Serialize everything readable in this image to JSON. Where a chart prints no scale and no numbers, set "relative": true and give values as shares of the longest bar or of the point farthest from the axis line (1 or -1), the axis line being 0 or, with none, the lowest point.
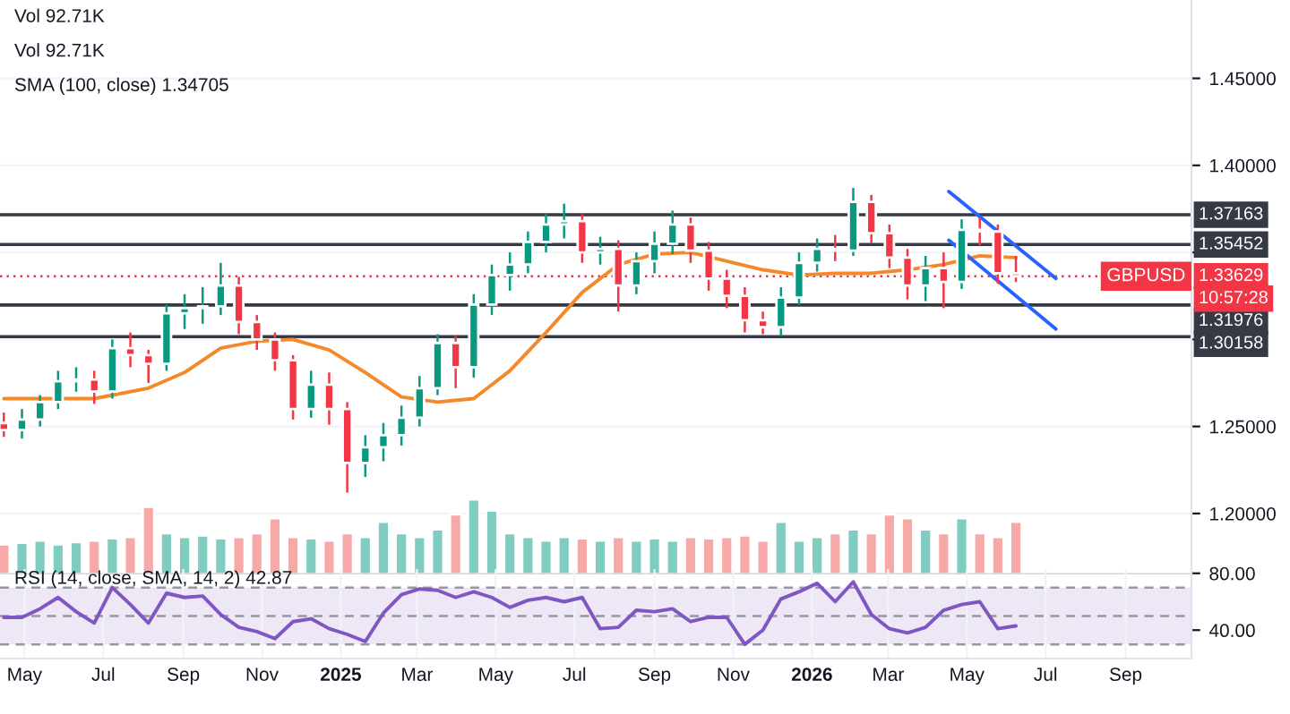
{
  "chart_data": [
    {
      "type": "candlestick",
      "x": [
        "2024-04-15",
        "2024-04-29",
        "2024-05-13",
        "2024-05-27",
        "2024-06-10",
        "2024-06-24",
        "2024-07-08",
        "2024-07-22",
        "2024-08-05",
        "2024-08-19",
        "2024-09-02",
        "2024-09-16",
        "2024-09-30",
        "2024-10-14",
        "2024-10-28",
        "2024-11-11",
        "2024-11-25",
        "2024-12-09",
        "2024-12-23",
        "2025-01-06",
        "2025-01-20",
        "2025-02-03",
        "2025-02-17",
        "2025-03-03",
        "2025-03-17",
        "2025-03-31",
        "2025-04-14",
        "2025-04-28",
        "2025-05-12",
        "2025-05-26",
        "2025-06-09",
        "2025-06-23",
        "2025-07-07",
        "2025-07-21",
        "2025-08-04",
        "2025-08-18",
        "2025-09-01",
        "2025-09-15",
        "2025-09-29",
        "2025-10-13",
        "2025-10-27",
        "2025-11-10",
        "2025-11-24",
        "2025-12-08",
        "2025-12-22",
        "2026-01-05",
        "2026-01-19",
        "2026-02-02",
        "2026-02-16",
        "2026-03-02",
        "2026-03-16",
        "2026-03-30",
        "2026-04-13",
        "2026-04-27",
        "2026-05-11",
        "2026-05-25",
        "2026-06-08"
      ],
      "ohlc": [
        [
          1.252,
          1.258,
          1.244,
          1.248
        ],
        [
          1.248,
          1.26,
          1.243,
          1.254
        ],
        [
          1.254,
          1.268,
          1.25,
          1.264
        ],
        [
          1.264,
          1.282,
          1.26,
          1.276
        ],
        [
          1.276,
          1.284,
          1.27,
          1.277
        ],
        [
          1.277,
          1.282,
          1.263,
          1.27
        ],
        [
          1.27,
          1.3,
          1.266,
          1.295
        ],
        [
          1.295,
          1.304,
          1.284,
          1.291
        ],
        [
          1.291,
          1.294,
          1.275,
          1.286
        ],
        [
          1.286,
          1.32,
          1.282,
          1.315
        ],
        [
          1.315,
          1.326,
          1.306,
          1.318
        ],
        [
          1.318,
          1.33,
          1.309,
          1.319
        ],
        [
          1.319,
          1.344,
          1.314,
          1.331
        ],
        [
          1.331,
          1.336,
          1.303,
          1.31
        ],
        [
          1.31,
          1.314,
          1.294,
          1.3
        ],
        [
          1.3,
          1.304,
          1.282,
          1.288
        ],
        [
          1.288,
          1.291,
          1.254,
          1.26
        ],
        [
          1.26,
          1.282,
          1.255,
          1.274
        ],
        [
          1.274,
          1.281,
          1.251,
          1.26
        ],
        [
          1.26,
          1.264,
          1.212,
          1.229
        ],
        [
          1.229,
          1.245,
          1.221,
          1.238
        ],
        [
          1.238,
          1.252,
          1.23,
          1.245
        ],
        [
          1.245,
          1.262,
          1.239,
          1.255
        ],
        [
          1.255,
          1.279,
          1.25,
          1.272
        ],
        [
          1.272,
          1.303,
          1.268,
          1.298
        ],
        [
          1.298,
          1.302,
          1.272,
          1.284
        ],
        [
          1.284,
          1.326,
          1.278,
          1.32
        ],
        [
          1.32,
          1.343,
          1.314,
          1.337
        ],
        [
          1.337,
          1.35,
          1.328,
          1.343
        ],
        [
          1.343,
          1.362,
          1.338,
          1.356
        ],
        [
          1.356,
          1.372,
          1.35,
          1.366
        ],
        [
          1.366,
          1.378,
          1.358,
          1.368
        ],
        [
          1.368,
          1.372,
          1.344,
          1.35
        ],
        [
          1.35,
          1.359,
          1.343,
          1.352
        ],
        [
          1.352,
          1.357,
          1.316,
          1.331
        ],
        [
          1.331,
          1.35,
          1.326,
          1.345
        ],
        [
          1.345,
          1.362,
          1.338,
          1.355
        ],
        [
          1.355,
          1.374,
          1.349,
          1.366
        ],
        [
          1.366,
          1.37,
          1.344,
          1.351
        ],
        [
          1.351,
          1.356,
          1.328,
          1.335
        ],
        [
          1.335,
          1.34,
          1.318,
          1.325
        ],
        [
          1.325,
          1.33,
          1.304,
          1.311
        ],
        [
          1.311,
          1.316,
          1.303,
          1.307
        ],
        [
          1.307,
          1.33,
          1.302,
          1.324
        ],
        [
          1.324,
          1.35,
          1.32,
          1.344
        ],
        [
          1.344,
          1.358,
          1.339,
          1.352
        ],
        [
          1.352,
          1.36,
          1.345,
          1.351
        ],
        [
          1.351,
          1.387,
          1.348,
          1.379
        ],
        [
          1.379,
          1.383,
          1.355,
          1.361
        ],
        [
          1.361,
          1.366,
          1.341,
          1.347
        ],
        [
          1.347,
          1.352,
          1.323,
          1.331
        ],
        [
          1.331,
          1.348,
          1.322,
          1.341
        ],
        [
          1.341,
          1.35,
          1.318,
          1.333
        ],
        [
          1.333,
          1.369,
          1.329,
          1.363
        ],
        [
          1.363,
          1.37,
          1.354,
          1.362
        ],
        [
          1.362,
          1.366,
          1.332,
          1.338
        ],
        [
          1.338,
          1.348,
          1.333,
          1.33629
        ]
      ],
      "colors": [
        "#f23645",
        "#089981",
        "#089981",
        "#089981",
        "#089981",
        "#f23645",
        "#089981",
        "#f23645",
        "#f23645",
        "#089981",
        "#089981",
        "#089981",
        "#089981",
        "#f23645",
        "#f23645",
        "#f23645",
        "#f23645",
        "#089981",
        "#f23645",
        "#f23645",
        "#089981",
        "#089981",
        "#089981",
        "#089981",
        "#089981",
        "#f23645",
        "#089981",
        "#089981",
        "#089981",
        "#089981",
        "#089981",
        "#089981",
        "#f23645",
        "#089981",
        "#f23645",
        "#089981",
        "#089981",
        "#089981",
        "#f23645",
        "#f23645",
        "#f23645",
        "#f23645",
        "#f23645",
        "#089981",
        "#089981",
        "#089981",
        "#f23645",
        "#089981",
        "#f23645",
        "#f23645",
        "#f23645",
        "#089981",
        "#f23645",
        "#089981",
        "#f23645",
        "#f23645",
        "#f23645"
      ],
      "series": [
        {
          "type": "line",
          "color": "#f5892a",
          "x": [
            "2024-04-15",
            "2024-06-24",
            "2024-08-05",
            "2024-09-02",
            "2024-09-30",
            "2024-10-28",
            "2024-11-25",
            "2024-12-23",
            "2025-01-20",
            "2025-02-17",
            "2025-03-17",
            "2025-04-14",
            "2025-05-12",
            "2025-06-09",
            "2025-07-07",
            "2025-08-04",
            "2025-09-01",
            "2025-09-29",
            "2025-10-27",
            "2025-11-24",
            "2025-12-22",
            "2026-01-19",
            "2026-02-16",
            "2026-03-16",
            "2026-04-13",
            "2026-05-11",
            "2026-06-08"
          ],
          "values": [
            1.266,
            1.266,
            1.272,
            1.281,
            1.295,
            1.299,
            1.3,
            1.294,
            1.281,
            1.267,
            1.264,
            1.266,
            1.282,
            1.304,
            1.327,
            1.343,
            1.349,
            1.35,
            1.345,
            1.34,
            1.337,
            1.338,
            1.338,
            1.34,
            1.343,
            1.348,
            1.347
          ]
        },
        {
          "type": "line",
          "color": "#2962ff",
          "x": [
            "2026-04-17",
            "2026-07-09"
          ],
          "values": [
            1.385,
            1.335
          ]
        },
        {
          "type": "line",
          "color": "#2962ff",
          "x": [
            "2026-04-17",
            "2026-07-09"
          ],
          "values": [
            1.357,
            1.306
          ]
        }
      ],
      "ref_lines": [
        {
          "axis": "y",
          "value": 1.37163,
          "label": "1.37163",
          "color": "#363a45"
        },
        {
          "axis": "y",
          "value": 1.35452,
          "label": "1.35452",
          "color": "#363a45"
        },
        {
          "axis": "y",
          "value": 1.31976,
          "label": "1.31976",
          "color": "#363a45"
        },
        {
          "axis": "y",
          "value": 1.30158,
          "label": "1.30158",
          "color": "#363a45"
        },
        {
          "axis": "y",
          "value": 1.33629,
          "label": "1.33629",
          "color": "#f23645",
          "line_style": "dotted"
        }
      ],
      "annotations": [
        "Vol 92.71K",
        "Vol 92.71K",
        "SMA (100, close) 1.34705",
        {
          "text": "GBPUSD",
          "y": 1.33629
        },
        "10:57:28"
      ],
      "xlim": [
        "2024-04-12",
        "2026-10-22"
      ],
      "ylim": [
        1.165,
        1.495
      ],
      "yticks": [
        {
          "value": 1.2,
          "label": "1.20000"
        },
        {
          "value": 1.25,
          "label": "1.25000"
        },
        {
          "value": 1.3,
          "label": null
        },
        {
          "value": 1.35,
          "label": null
        },
        {
          "value": 1.4,
          "label": "1.40000"
        },
        {
          "value": 1.45,
          "label": "1.45000"
        }
      ],
      "grid": "y",
      "tick_labels": "y"
    },
    {
      "type": "bar",
      "relative": true,
      "tick_labels": false,
      "x": [
        "2024-04-15",
        "2024-04-29",
        "2024-05-13",
        "2024-05-27",
        "2024-06-10",
        "2024-06-24",
        "2024-07-08",
        "2024-07-22",
        "2024-08-05",
        "2024-08-19",
        "2024-09-02",
        "2024-09-16",
        "2024-09-30",
        "2024-10-14",
        "2024-10-28",
        "2024-11-11",
        "2024-11-25",
        "2024-12-09",
        "2024-12-23",
        "2025-01-06",
        "2025-01-20",
        "2025-02-03",
        "2025-02-17",
        "2025-03-03",
        "2025-03-17",
        "2025-03-31",
        "2025-04-14",
        "2025-04-28",
        "2025-05-12",
        "2025-05-26",
        "2025-06-09",
        "2025-06-23",
        "2025-07-07",
        "2025-07-21",
        "2025-08-04",
        "2025-08-18",
        "2025-09-01",
        "2025-09-15",
        "2025-09-29",
        "2025-10-13",
        "2025-10-27",
        "2025-11-10",
        "2025-11-24",
        "2025-12-08",
        "2025-12-22",
        "2026-01-05",
        "2026-01-19",
        "2026-02-02",
        "2026-02-16",
        "2026-03-02",
        "2026-03-16",
        "2026-03-30",
        "2026-04-13",
        "2026-04-27",
        "2026-05-11",
        "2026-05-25",
        "2026-06-08"
      ],
      "values": [
        0.4,
        0.42,
        0.45,
        0.4,
        0.43,
        0.45,
        0.48,
        0.5,
        0.9,
        0.55,
        0.5,
        0.52,
        0.48,
        0.5,
        0.55,
        0.75,
        0.5,
        0.48,
        0.45,
        0.55,
        0.5,
        0.7,
        0.55,
        0.5,
        0.6,
        0.8,
        1.0,
        0.85,
        0.55,
        0.5,
        0.45,
        0.5,
        0.48,
        0.45,
        0.5,
        0.45,
        0.48,
        0.45,
        0.5,
        0.48,
        0.5,
        0.52,
        0.45,
        0.7,
        0.45,
        0.5,
        0.55,
        0.6,
        0.55,
        0.8,
        0.75,
        0.6,
        0.55,
        0.75,
        0.55,
        0.5,
        0.7
      ],
      "colors": [
        "#f7a9a7",
        "#7fccc0",
        "#7fccc0",
        "#7fccc0",
        "#7fccc0",
        "#f7a9a7",
        "#7fccc0",
        "#f7a9a7",
        "#f7a9a7",
        "#7fccc0",
        "#7fccc0",
        "#7fccc0",
        "#7fccc0",
        "#f7a9a7",
        "#f7a9a7",
        "#f7a9a7",
        "#f7a9a7",
        "#7fccc0",
        "#f7a9a7",
        "#f7a9a7",
        "#7fccc0",
        "#7fccc0",
        "#7fccc0",
        "#7fccc0",
        "#7fccc0",
        "#f7a9a7",
        "#7fccc0",
        "#7fccc0",
        "#7fccc0",
        "#7fccc0",
        "#7fccc0",
        "#7fccc0",
        "#f7a9a7",
        "#7fccc0",
        "#f7a9a7",
        "#7fccc0",
        "#7fccc0",
        "#7fccc0",
        "#f7a9a7",
        "#f7a9a7",
        "#f7a9a7",
        "#f7a9a7",
        "#f7a9a7",
        "#7fccc0",
        "#7fccc0",
        "#7fccc0",
        "#f7a9a7",
        "#7fccc0",
        "#f7a9a7",
        "#f7a9a7",
        "#f7a9a7",
        "#7fccc0",
        "#f7a9a7",
        "#7fccc0",
        "#f7a9a7",
        "#f7a9a7",
        "#f7a9a7"
      ],
      "xlim": [
        "2024-04-12",
        "2026-10-22"
      ]
    },
    {
      "type": "line",
      "x": [
        "2024-04-15",
        "2024-04-29",
        "2024-05-13",
        "2024-05-27",
        "2024-06-10",
        "2024-06-24",
        "2024-07-08",
        "2024-07-22",
        "2024-08-05",
        "2024-08-19",
        "2024-09-02",
        "2024-09-16",
        "2024-09-30",
        "2024-10-14",
        "2024-10-28",
        "2024-11-11",
        "2024-11-25",
        "2024-12-09",
        "2024-12-23",
        "2025-01-06",
        "2025-01-20",
        "2025-02-03",
        "2025-02-17",
        "2025-03-03",
        "2025-03-17",
        "2025-03-31",
        "2025-04-14",
        "2025-04-28",
        "2025-05-12",
        "2025-05-26",
        "2025-06-09",
        "2025-06-23",
        "2025-07-07",
        "2025-07-21",
        "2025-08-04",
        "2025-08-18",
        "2025-09-01",
        "2025-09-15",
        "2025-09-29",
        "2025-10-13",
        "2025-10-27",
        "2025-11-10",
        "2025-11-24",
        "2025-12-08",
        "2025-12-22",
        "2026-01-05",
        "2026-01-19",
        "2026-02-02",
        "2026-02-16",
        "2026-03-02",
        "2026-03-16",
        "2026-03-30",
        "2026-04-13",
        "2026-04-27",
        "2026-05-11",
        "2026-05-25",
        "2026-06-08"
      ],
      "series": [
        {
          "color": "#7e57c2",
          "values": [
            49,
            49,
            55,
            63,
            53,
            45,
            70,
            58,
            45,
            66,
            63,
            64,
            51,
            42,
            39,
            34,
            46,
            48,
            41,
            37,
            32,
            52,
            65,
            69,
            68,
            63,
            67,
            63,
            56,
            61,
            63,
            60,
            63,
            41,
            42,
            54,
            53,
            55,
            46,
            49,
            49,
            30,
            40,
            62,
            67,
            73,
            60,
            74,
            51,
            41,
            38,
            42,
            54,
            58,
            60,
            41,
            43
          ]
        }
      ],
      "bands": [
        {
          "axis": "y",
          "from": 30,
          "to": 70,
          "color": "#ede7f6"
        }
      ],
      "ref_lines": [
        {
          "axis": "y",
          "value": 70,
          "color": "#9598a1",
          "line_style": "dashed"
        },
        {
          "axis": "y",
          "value": 50,
          "color": "#9598a1",
          "line_style": "dashed"
        },
        {
          "axis": "y",
          "value": 30,
          "color": "#9598a1",
          "line_style": "dashed"
        }
      ],
      "annotations": [
        "RSI (14, close, SMA, 14, 2) 42.87"
      ],
      "xlim": [
        "2024-04-12",
        "2026-10-22"
      ],
      "xticks": [
        {
          "value": "2024-05-01",
          "label": "May"
        },
        {
          "value": "2024-07-01",
          "label": "Jul"
        },
        {
          "value": "2024-09-01",
          "label": "Sep"
        },
        {
          "value": "2024-11-01",
          "label": "Nov"
        },
        {
          "value": "2025-01-01",
          "label": "2025"
        },
        {
          "value": "2025-03-01",
          "label": "Mar"
        },
        {
          "value": "2025-05-01",
          "label": "May"
        },
        {
          "value": "2025-07-01",
          "label": "Jul"
        },
        {
          "value": "2025-09-01",
          "label": "Sep"
        },
        {
          "value": "2025-11-01",
          "label": "Nov"
        },
        {
          "value": "2026-01-01",
          "label": "2026"
        },
        {
          "value": "2026-03-01",
          "label": "Mar"
        },
        {
          "value": "2026-05-01",
          "label": "May"
        },
        {
          "value": "2026-07-01",
          "label": "Jul"
        },
        {
          "value": "2026-09-01",
          "label": "Sep"
        }
      ],
      "ylim": [
        20,
        83
      ],
      "yticks": [
        {
          "value": 80,
          "label": "80.00"
        },
        {
          "value": 40,
          "label": "40.00"
        }
      ],
      "grid": "x"
    }
  ]
}
